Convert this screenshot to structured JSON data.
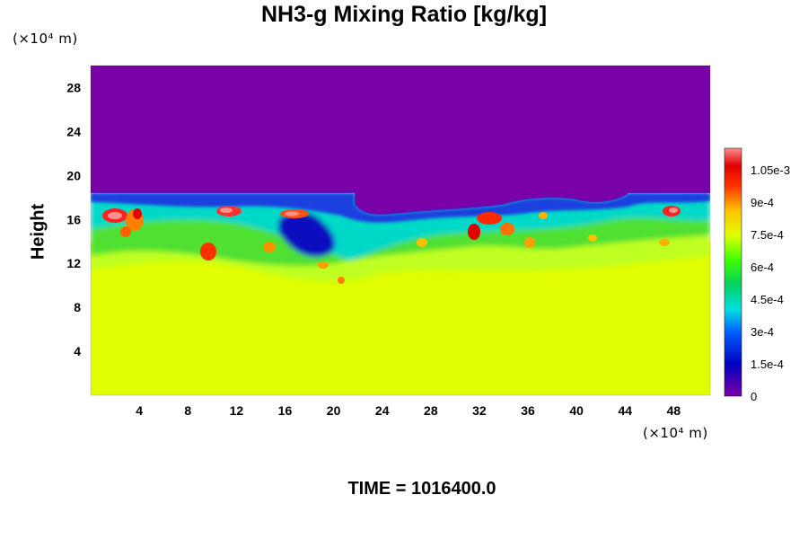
{
  "chart_data": {
    "type": "heatmap",
    "title": "NH3-g Mixing Ratio [kg/kg]",
    "ylabel": "Height",
    "xlabel": "",
    "x_unit": "(×10⁴ m)",
    "y_unit": "(×10⁴ m)",
    "x_ticks": [
      4,
      8,
      12,
      16,
      20,
      24,
      28,
      32,
      36,
      40,
      44,
      48
    ],
    "y_ticks": [
      4,
      8,
      12,
      16,
      20,
      24,
      28
    ],
    "xlim": [
      0,
      51
    ],
    "ylim": [
      0,
      30
    ],
    "colorbar": {
      "labels": [
        "0",
        "1.5e-4",
        "3e-4",
        "4.5e-4",
        "6e-4",
        "7.5e-4",
        "9e-4",
        "1.05e-3"
      ],
      "values": [
        0,
        0.00015,
        0.0003,
        0.00045,
        0.0006,
        0.00075,
        0.0009,
        0.00105
      ],
      "range": [
        0,
        0.00115
      ]
    },
    "regions": [
      {
        "name": "lower-uniform",
        "y_range": [
          0,
          11
        ],
        "value": 0.00075,
        "color": "#e0ff00"
      },
      {
        "name": "upper-uniform",
        "y_range": [
          17.5,
          30
        ],
        "value": 0.0,
        "color": "#7a00a8"
      },
      {
        "name": "turbulent-layer",
        "y_range": [
          11,
          18
        ],
        "value_range": [
          0,
          0.00115
        ]
      }
    ]
  },
  "footer": {
    "time_label": "TIME = 1016400.0"
  }
}
